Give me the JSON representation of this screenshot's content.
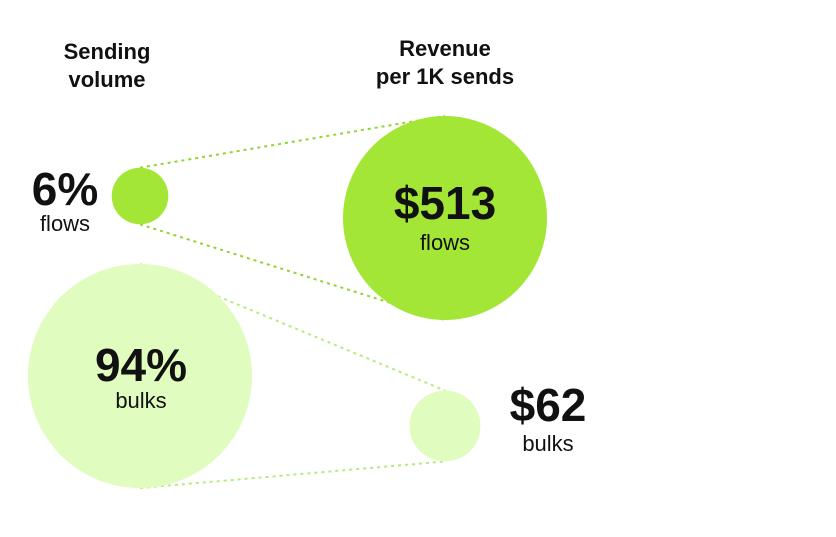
{
  "headers": {
    "volume": [
      "Sending",
      "volume"
    ],
    "revenue": [
      "Revenue",
      "per 1K sends"
    ]
  },
  "colors": {
    "flows": "#a3e635",
    "bulks": "#e0fcbe",
    "connector_flows": "#8fd62f",
    "connector_bulks": "#b6ec7a",
    "text": "#111111"
  },
  "chart_data": {
    "type": "bubble",
    "title": "",
    "panels": [
      {
        "name": "Sending volume",
        "unit": "%",
        "items": [
          {
            "category": "flows",
            "value": 6,
            "label": "6%",
            "sublabel": "flows"
          },
          {
            "category": "bulks",
            "value": 94,
            "label": "94%",
            "sublabel": "bulks"
          }
        ]
      },
      {
        "name": "Revenue per 1K sends",
        "unit": "$",
        "items": [
          {
            "category": "flows",
            "value": 513,
            "label": "$513",
            "sublabel": "flows"
          },
          {
            "category": "bulks",
            "value": 62,
            "label": "$62",
            "sublabel": "bulks"
          }
        ]
      }
    ]
  }
}
